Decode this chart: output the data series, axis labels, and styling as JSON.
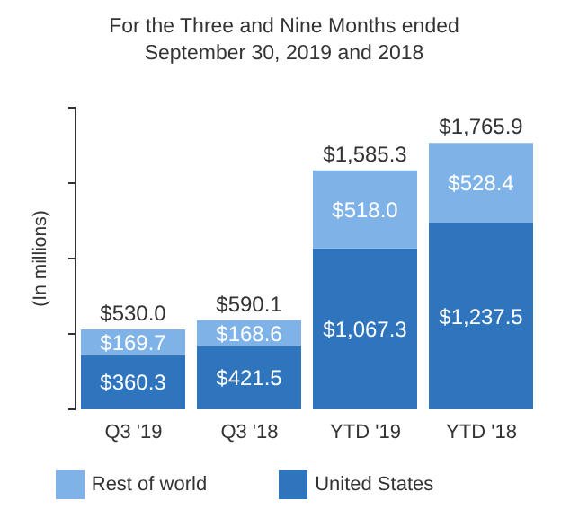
{
  "chart_data": {
    "type": "bar",
    "title": "For the Three and Nine Months ended September 30, 2019 and 2018",
    "ylabel": "(In millions)",
    "categories": [
      "Q3 '19",
      "Q3 '18",
      "YTD '19",
      "YTD '18"
    ],
    "stacked": true,
    "ylim": [
      0,
      2000
    ],
    "yticks": [
      {
        "value": 0,
        "label": null
      },
      {
        "value": 500,
        "label": null
      },
      {
        "value": 1000,
        "label": null
      },
      {
        "value": 1500,
        "label": null
      },
      {
        "value": 2000,
        "label": null
      }
    ],
    "tick_labels": "x",
    "legend": "bottom",
    "grid": false,
    "series": [
      {
        "name": "United States",
        "color": "#2f75bd",
        "values": [
          360.3,
          421.5,
          1067.3,
          1237.5
        ],
        "value_labels": [
          "$360.3",
          "$421.5",
          "$1,067.3",
          "$1,237.5"
        ]
      },
      {
        "name": "Rest of world",
        "color": "#7fb2e6",
        "values": [
          169.7,
          168.6,
          518.0,
          528.4
        ],
        "value_labels": [
          "$169.7",
          "$168.6",
          "$518.0",
          "$528.4"
        ]
      }
    ],
    "totals": [
      "$530.0",
      "$590.1",
      "$1,585.3",
      "$1,765.9"
    ]
  }
}
